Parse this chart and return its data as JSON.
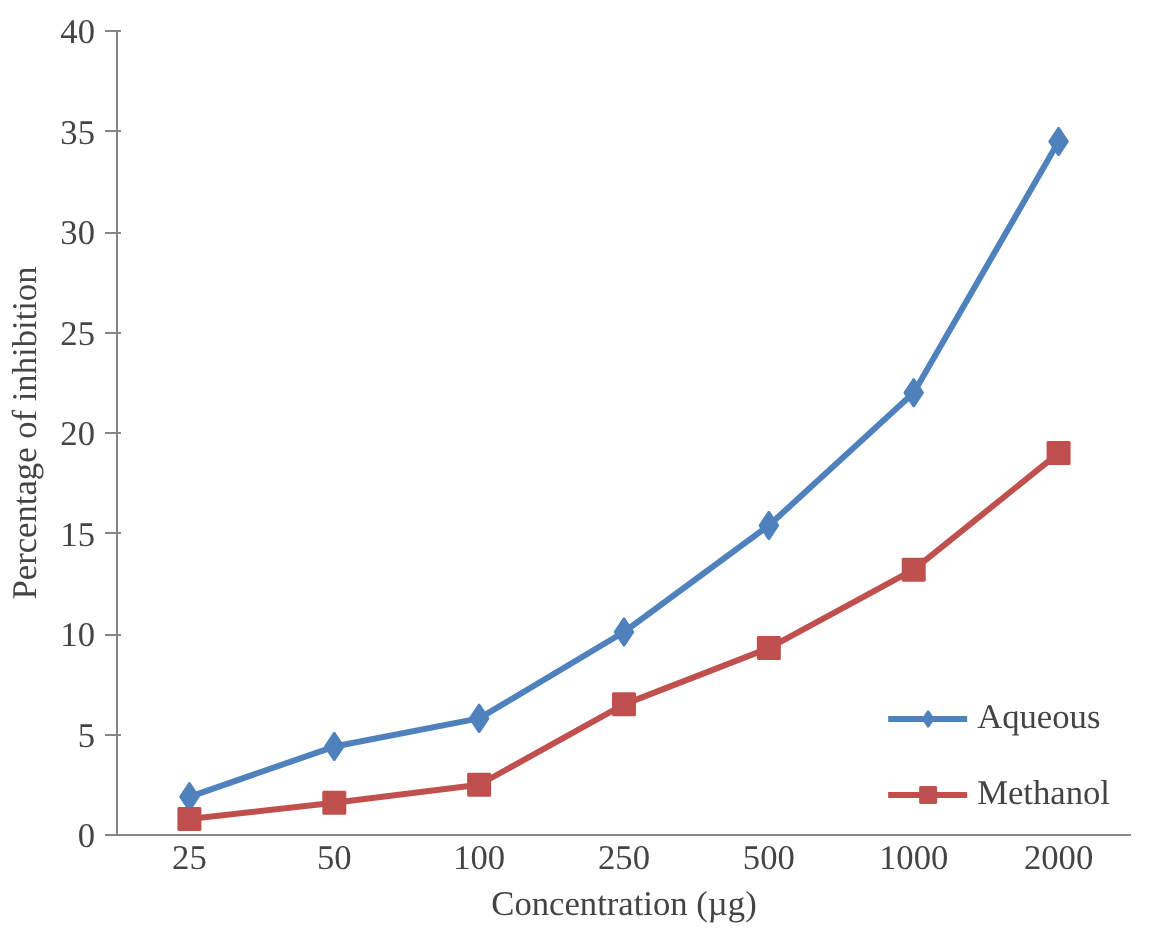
{
  "chart_data": {
    "type": "line",
    "xlabel": "Concentration (µg)",
    "ylabel": "Percentage of inhibition",
    "categories": [
      "25",
      "50",
      "100",
      "250",
      "500",
      "1000",
      "2000"
    ],
    "series": [
      {
        "name": "Aqueous",
        "color": "#4f81bd",
        "marker": "diamond",
        "values": [
          1.9,
          4.4,
          5.8,
          10.1,
          15.4,
          22.0,
          34.5
        ]
      },
      {
        "name": "Methanol",
        "color": "#c0504d",
        "marker": "square",
        "values": [
          0.8,
          1.6,
          2.5,
          6.5,
          9.3,
          13.2,
          19.0
        ]
      }
    ],
    "ylim": [
      0,
      40
    ],
    "yticks": [
      0,
      5,
      10,
      15,
      20,
      25,
      30,
      35,
      40
    ],
    "grid": false,
    "legend": "bottom right",
    "line_style": "solid"
  }
}
